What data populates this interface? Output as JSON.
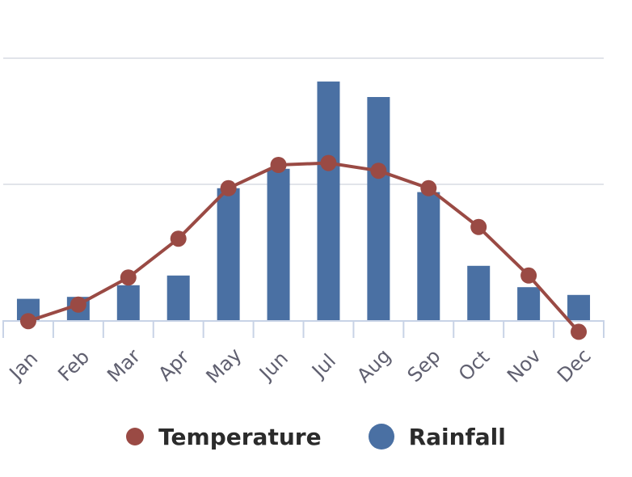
{
  "chart_data": {
    "type": "bar+line",
    "categories": [
      "Jan",
      "Feb",
      "Mar",
      "Apr",
      "May",
      "Jun",
      "Jul",
      "Aug",
      "Sep",
      "Oct",
      "Nov",
      "Dec"
    ],
    "series": [
      {
        "name": "Rainfall",
        "type": "bar",
        "color": "#4a70a3",
        "values": [
          6,
          7,
          13,
          18,
          63,
          73,
          118,
          110,
          61,
          23,
          12,
          8
        ]
      },
      {
        "name": "Temperature",
        "type": "line",
        "color": "#9a4a44",
        "values": [
          -5.5,
          3,
          17,
          37,
          63,
          75,
          76,
          72,
          63,
          43,
          18,
          -11
        ]
      }
    ],
    "ylim": [
      -5,
      130
    ],
    "gridlines": [
      0,
      65,
      130
    ],
    "legend": "bottom-center"
  },
  "legend": {
    "temperature_label": "Temperature",
    "rainfall_label": "Rainfall"
  },
  "colors": {
    "bar": "#4a70a3",
    "line": "#9a4a44",
    "grid": "#e1e4ea",
    "axis": "#c8d3e6",
    "tick_label": "#606070"
  }
}
